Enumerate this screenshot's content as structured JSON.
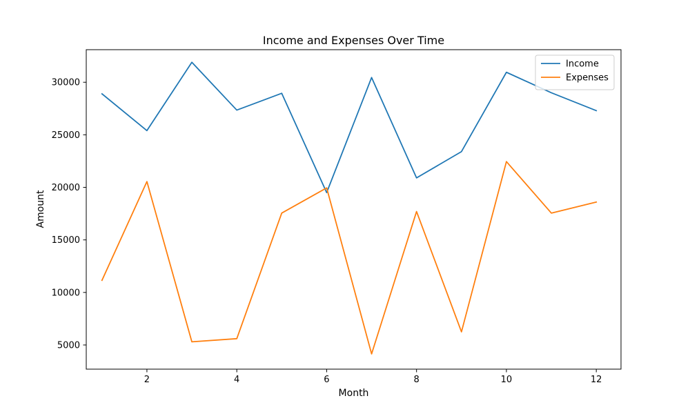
{
  "chart_data": {
    "type": "line",
    "title": "Income and Expenses Over Time",
    "xlabel": "Month",
    "ylabel": "Amount",
    "x": [
      1,
      2,
      3,
      4,
      5,
      6,
      7,
      8,
      9,
      10,
      11,
      12
    ],
    "xlim": [
      0.65,
      12.55
    ],
    "ylim": [
      2700,
      33100
    ],
    "xticks": [
      2,
      4,
      6,
      8,
      10,
      12
    ],
    "yticks": [
      5000,
      10000,
      15000,
      20000,
      25000,
      30000
    ],
    "grid": false,
    "legend_position": "top-right",
    "series": [
      {
        "name": "Income",
        "color": "#1f77b4",
        "values": [
          28900,
          25400,
          31900,
          27350,
          28950,
          19500,
          30450,
          20900,
          23400,
          30950,
          29000,
          27300
        ]
      },
      {
        "name": "Expenses",
        "color": "#ff7f0e",
        "values": [
          11150,
          20550,
          5300,
          5600,
          17550,
          19950,
          4150,
          17700,
          6250,
          22450,
          17550,
          18600
        ]
      }
    ]
  }
}
